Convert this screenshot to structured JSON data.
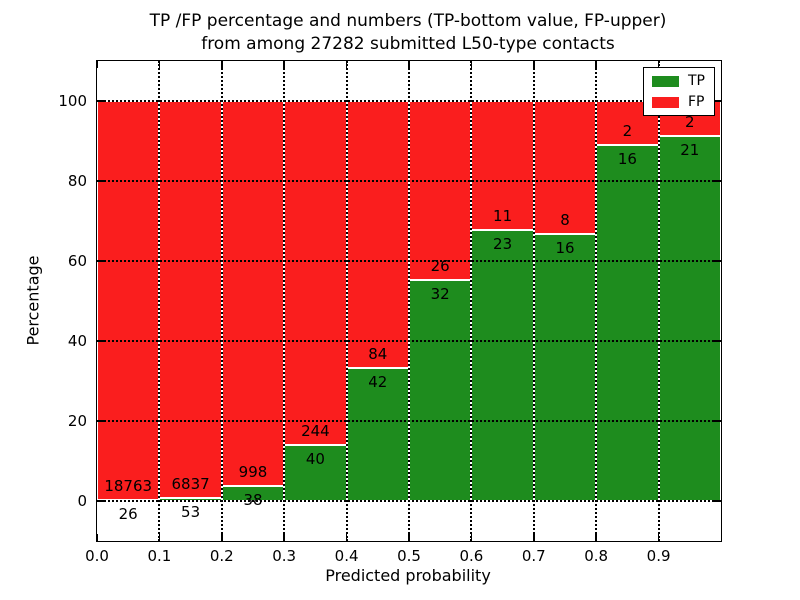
{
  "title": {
    "line1": "TP /FP percentage and numbers (TP-bottom value, FP-upper)",
    "line2": "from among 27282 submitted L50-type contacts"
  },
  "chart_data": {
    "type": "bar",
    "stacked": true,
    "normalized_to_percent": true,
    "title": "TP /FP percentage and numbers (TP-bottom value, FP-upper) from among 27282 submitted L50-type contacts",
    "xlabel": "Predicted probability",
    "ylabel": "Percentage",
    "xlim": [
      0.0,
      1.0
    ],
    "ylim": [
      -10,
      110
    ],
    "bin_width": 0.1,
    "categories": [
      "0.0-0.1",
      "0.1-0.2",
      "0.2-0.3",
      "0.3-0.4",
      "0.4-0.5",
      "0.5-0.6",
      "0.6-0.7",
      "0.7-0.8",
      "0.8-0.9",
      "0.9-1.0"
    ],
    "x_tick_labels": [
      "0.0",
      "0.1",
      "0.2",
      "0.3",
      "0.4",
      "0.5",
      "0.6",
      "0.7",
      "0.8",
      "0.9"
    ],
    "y_tick_values": [
      0,
      20,
      40,
      60,
      80,
      100
    ],
    "y_tick_labels": [
      "0",
      "20",
      "40",
      "60",
      "80",
      "100"
    ],
    "series": [
      {
        "name": "TP",
        "color": "#1e8c1e",
        "counts": [
          26,
          53,
          38,
          40,
          42,
          32,
          23,
          16,
          16,
          21
        ],
        "percent": [
          0.14,
          0.77,
          3.67,
          14.08,
          33.33,
          55.17,
          67.65,
          66.67,
          88.89,
          91.3
        ]
      },
      {
        "name": "FP",
        "color": "#fa1e1e",
        "counts": [
          18763,
          6837,
          998,
          244,
          84,
          26,
          11,
          8,
          2,
          2
        ],
        "percent": [
          99.86,
          99.23,
          96.33,
          85.92,
          66.67,
          44.83,
          32.35,
          33.33,
          11.11,
          8.7
        ]
      }
    ],
    "legend": {
      "position": "upper right",
      "entries": [
        "TP",
        "FP"
      ]
    },
    "grid": {
      "style": "dotted",
      "color": "#000000"
    },
    "bar_edge_color": "#ffffff",
    "annotation_color": "#000000",
    "total_contacts": 27282
  },
  "colors": {
    "tp_green": "#1e8c1e",
    "fp_red": "#fa1e1e",
    "background": "#ffffff",
    "text": "#000000"
  }
}
